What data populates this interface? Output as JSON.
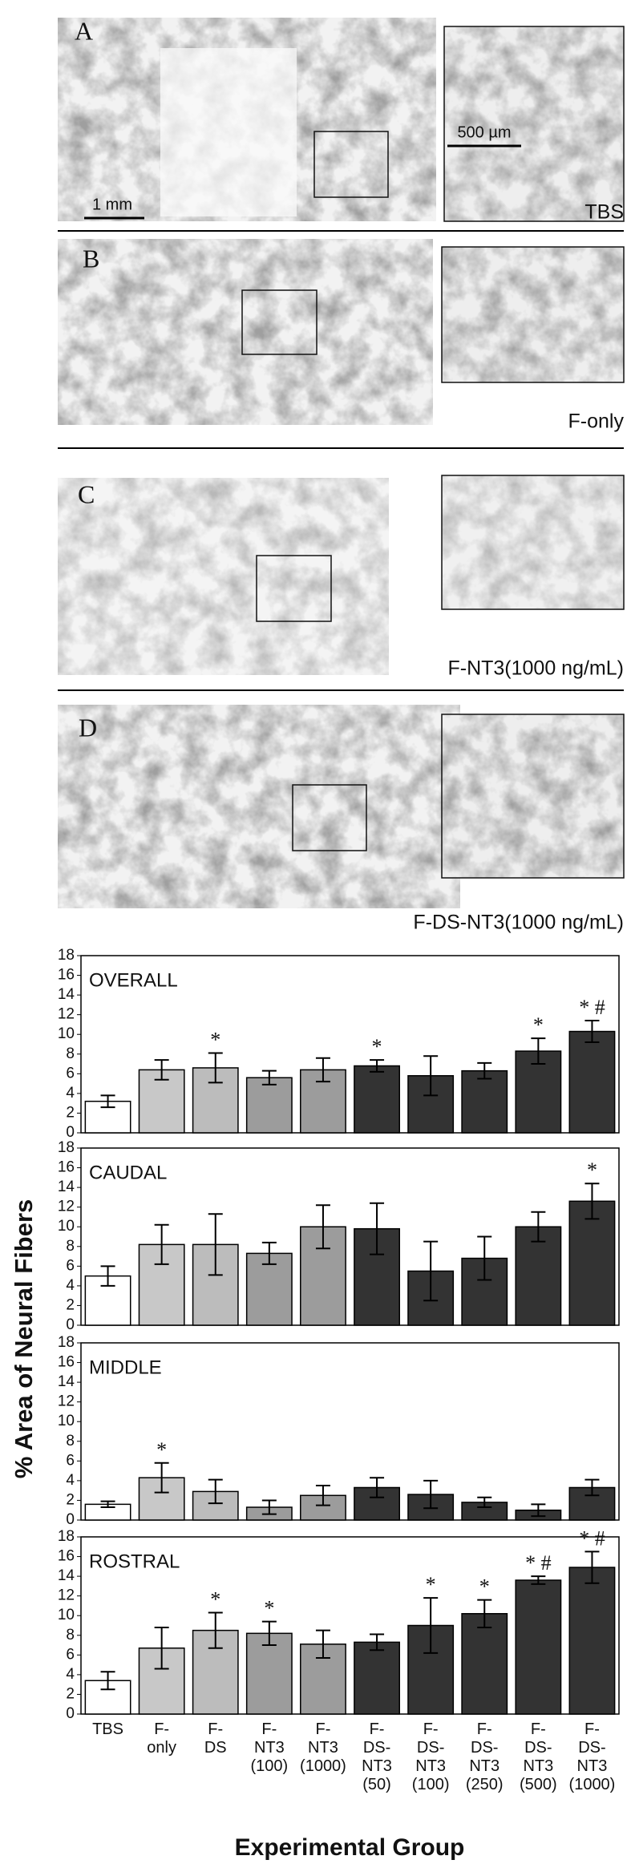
{
  "micrographs": [
    {
      "letter": "A",
      "caption": "TBS",
      "scale_main": "1 mm",
      "scale_inset": "500 µm"
    },
    {
      "letter": "B",
      "caption": "F-only"
    },
    {
      "letter": "C",
      "caption": "F-NT3(1000 ng/mL)"
    },
    {
      "letter": "D",
      "caption": "F-DS-NT3(1000 ng/mL)"
    }
  ],
  "figure": {
    "ylabel": "% Area of Neural Fibers",
    "xlabel": "Experimental Group"
  },
  "chart_data": [
    {
      "type": "bar",
      "title": "OVERALL",
      "ylim": [
        0,
        18
      ],
      "yticks": [
        0,
        2,
        4,
        6,
        8,
        10,
        12,
        14,
        16,
        18
      ],
      "colors": [
        "#ffffff",
        "#c8c8c8",
        "#bcbcbc",
        "#9c9c9c",
        "#9c9c9c",
        "#333333",
        "#333333",
        "#333333",
        "#333333",
        "#333333"
      ],
      "values": [
        3.2,
        6.4,
        6.6,
        5.6,
        6.4,
        6.8,
        5.8,
        6.3,
        8.3,
        10.3
      ],
      "errors": [
        0.6,
        1.0,
        1.5,
        0.7,
        1.2,
        0.6,
        2.0,
        0.8,
        1.3,
        1.1
      ],
      "annotations": [
        null,
        null,
        "*",
        null,
        null,
        "*",
        null,
        null,
        "*",
        "* #"
      ]
    },
    {
      "type": "bar",
      "title": "CAUDAL",
      "ylim": [
        0,
        18
      ],
      "yticks": [
        0,
        2,
        4,
        6,
        8,
        10,
        12,
        14,
        16,
        18
      ],
      "colors": [
        "#ffffff",
        "#c8c8c8",
        "#bcbcbc",
        "#9c9c9c",
        "#9c9c9c",
        "#333333",
        "#333333",
        "#333333",
        "#333333",
        "#333333"
      ],
      "values": [
        5.0,
        8.2,
        8.2,
        7.3,
        10.0,
        9.8,
        5.5,
        6.8,
        10.0,
        12.6
      ],
      "errors": [
        1.0,
        2.0,
        3.1,
        1.1,
        2.2,
        2.6,
        3.0,
        2.2,
        1.5,
        1.8
      ],
      "annotations": [
        null,
        null,
        null,
        null,
        null,
        null,
        null,
        null,
        null,
        "*"
      ]
    },
    {
      "type": "bar",
      "title": "MIDDLE",
      "ylim": [
        0,
        18
      ],
      "yticks": [
        0,
        2,
        4,
        6,
        8,
        10,
        12,
        14,
        16,
        18
      ],
      "colors": [
        "#ffffff",
        "#c8c8c8",
        "#bcbcbc",
        "#9c9c9c",
        "#9c9c9c",
        "#333333",
        "#333333",
        "#333333",
        "#333333",
        "#333333"
      ],
      "values": [
        1.6,
        4.3,
        2.9,
        1.3,
        2.5,
        3.3,
        2.6,
        1.8,
        1.0,
        3.3
      ],
      "errors": [
        0.3,
        1.5,
        1.2,
        0.7,
        1.0,
        1.0,
        1.4,
        0.5,
        0.6,
        0.8
      ],
      "annotations": [
        null,
        "*",
        null,
        null,
        null,
        null,
        null,
        null,
        null,
        null
      ]
    },
    {
      "type": "bar",
      "title": "ROSTRAL",
      "ylim": [
        0,
        18
      ],
      "yticks": [
        0,
        2,
        4,
        6,
        8,
        10,
        12,
        14,
        16,
        18
      ],
      "categories": [
        "TBS",
        "F-\nonly",
        "F-\nDS",
        "F-\nNT3\n(100)",
        "F-\nNT3\n(1000)",
        "F-\nDS-\nNT3\n(50)",
        "F-\nDS-\nNT3\n(100)",
        "F-\nDS-\nNT3\n(250)",
        "F-\nDS-\nNT3\n(500)",
        "F-\nDS-\nNT3\n(1000)"
      ],
      "colors": [
        "#ffffff",
        "#c8c8c8",
        "#bcbcbc",
        "#9c9c9c",
        "#9c9c9c",
        "#333333",
        "#333333",
        "#333333",
        "#333333",
        "#333333"
      ],
      "values": [
        3.4,
        6.7,
        8.5,
        8.2,
        7.1,
        7.3,
        9.0,
        10.2,
        13.6,
        14.9
      ],
      "errors": [
        0.9,
        2.1,
        1.8,
        1.2,
        1.4,
        0.8,
        2.8,
        1.4,
        0.4,
        1.6
      ],
      "annotations": [
        null,
        null,
        "*",
        "*",
        null,
        null,
        "*",
        "*",
        "* #",
        "* #"
      ]
    }
  ]
}
